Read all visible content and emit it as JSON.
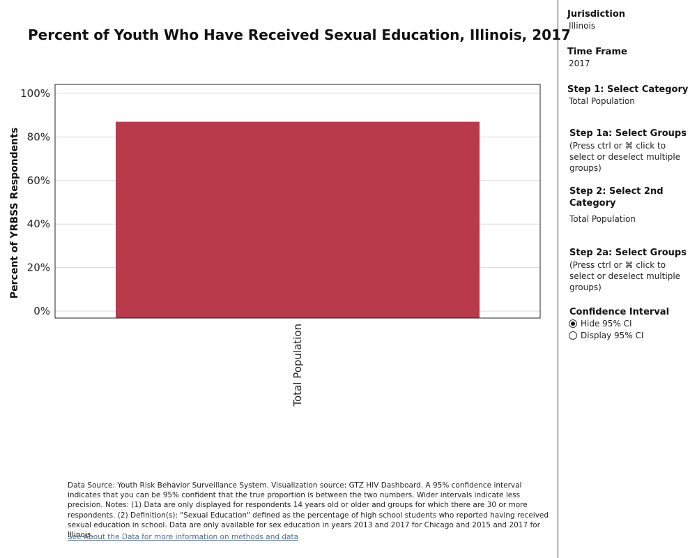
{
  "chart_data": {
    "type": "bar",
    "title": "Percent of Youth Who Have Received Sexual Education, Illinois, 2017",
    "ylabel": "Percent of YRBSS Respondents",
    "xlabel": "",
    "categories": [
      "Total Population"
    ],
    "values": [
      87
    ],
    "ylim": [
      0,
      105
    ],
    "yticks": [
      "0%",
      "20%",
      "40%",
      "60%",
      "80%",
      "100%"
    ],
    "ytick_values": [
      0,
      20,
      40,
      60,
      80,
      100
    ],
    "grid": true,
    "bar_color": "#b83a4b"
  },
  "footnote": "Data Source: Youth Risk Behavior Surveillance System. Visualization source: GTZ HIV Dashboard. A 95% confidence interval indicates that you can be 95% confident that the true proportion is between the two numbers. Wider intervals indicate less precision. Notes: (1) Data are only displayed for respondents 14 years old or older and groups for which there are 30 or more respondents. (2) Definition(s): \"Sexual Education\" defined as the percentage of high school students who reported having received sexual education in school. Data are only available for sex education in years 2013 and 2017 for Chicago and 2015 and 2017 for Illinois.",
  "link_text": "See About the Data for more information on methods and data",
  "panel": {
    "jurisdiction_label": "Jurisdiction",
    "jurisdiction_value": "Illinois",
    "timeframe_label": "Time Frame",
    "timeframe_value": "2017",
    "step1_label": "Step 1: Select Category",
    "step1_value": "Total Population",
    "step1a_label": "Step 1a: Select Groups",
    "step1a_hint": "(Press ctrl or ⌘ click to select or deselect multiple groups)",
    "step2_label": "Step 2: Select 2nd Category",
    "step2_value": "Total Population",
    "step2a_label": "Step 2a: Select Groups",
    "step2a_hint": "(Press ctrl or ⌘ click to select or deselect multiple groups)",
    "ci_label": "Confidence Interval",
    "ci_options": [
      "Hide 95% CI",
      "Display 95% CI"
    ],
    "ci_selected": "Hide 95% CI"
  }
}
